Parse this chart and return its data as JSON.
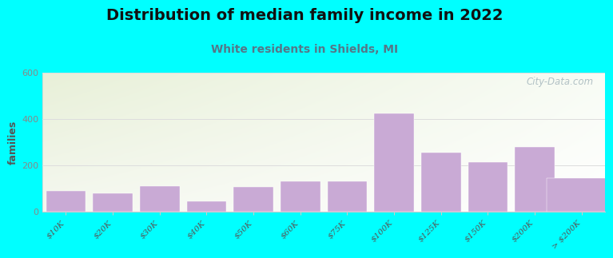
{
  "title": "Distribution of median family income in 2022",
  "subtitle": "White residents in Shields, MI",
  "ylabel": "families",
  "categories": [
    "$10K",
    "$20K",
    "$30K",
    "$40K",
    "$50K",
    "$60K",
    "$75K",
    "$100K",
    "$125K",
    "$150K",
    "$200K",
    "> $200K"
  ],
  "values": [
    90,
    80,
    110,
    45,
    105,
    130,
    130,
    425,
    255,
    215,
    280,
    145
  ],
  "bar_color": "#c9aad5",
  "background_outer": "#00FFFF",
  "plot_bg_colors": [
    "#e8f0d8",
    "#f5f8ee",
    "#f8fbf5",
    "#ffffff"
  ],
  "title_fontsize": 14,
  "subtitle_fontsize": 10,
  "subtitle_color": "#557788",
  "ylabel_color": "#555555",
  "tick_color": "#555555",
  "ytick_color": "#888888",
  "ylim": [
    0,
    600
  ],
  "yticks": [
    0,
    200,
    400,
    600
  ],
  "watermark": "City-Data.com",
  "watermark_color": "#aabbc0",
  "grid_color": "#dddddd",
  "spine_color": "#cccccc"
}
